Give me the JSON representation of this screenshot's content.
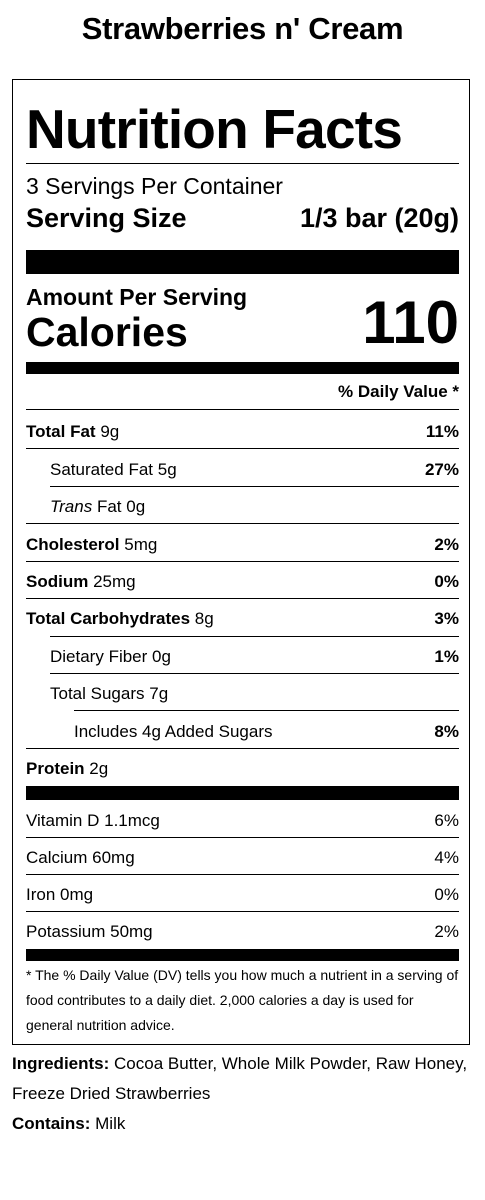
{
  "product_title": "Strawberries n' Cream",
  "label": {
    "title": "Nutrition Facts",
    "servings_per_container": "3 Servings Per Container",
    "serving_size_label": "Serving Size",
    "serving_size_value": "1/3 bar (20g)",
    "amount_per_serving": "Amount Per Serving",
    "calories_label": "Calories",
    "calories_value": "110",
    "dv_header": "% Daily Value *",
    "nutrients": [
      {
        "name": "Total Fat",
        "amount": "9g",
        "dv": "11%"
      },
      {
        "name": "Saturated Fat",
        "amount": "5g",
        "dv": "27%"
      },
      {
        "name_italic": "Trans",
        "name": "Fat",
        "amount": "0g",
        "dv": ""
      },
      {
        "name": "Cholesterol",
        "amount": "5mg",
        "dv": "2%"
      },
      {
        "name": "Sodium",
        "amount": "25mg",
        "dv": "0%"
      },
      {
        "name": "Total Carbohydrates",
        "amount": "8g",
        "dv": "3%"
      },
      {
        "name": "Dietary Fiber",
        "amount": "0g",
        "dv": "1%"
      },
      {
        "name": "Total Sugars",
        "amount": "7g",
        "dv": ""
      },
      {
        "name": "Includes 4g Added Sugars",
        "amount": "",
        "dv": "8%"
      },
      {
        "name": "Protein",
        "amount": "2g",
        "dv": ""
      }
    ],
    "vitamins": [
      {
        "name": "Vitamin D",
        "amount": "1.1mcg",
        "dv": "6%"
      },
      {
        "name": "Calcium",
        "amount": "60mg",
        "dv": "4%"
      },
      {
        "name": "Iron",
        "amount": "0mg",
        "dv": "0%"
      },
      {
        "name": "Potassium",
        "amount": "50mg",
        "dv": "2%"
      }
    ],
    "footnote": "* The % Daily Value (DV) tells you how much a nutrient in a serving of food contributes to a daily diet. 2,000 calories a day is used for general nutrition advice."
  },
  "ingredients": {
    "label": "Ingredients:",
    "text": "Cocoa Butter, Whole Milk Powder, Raw Honey, Freeze Dried Strawberries"
  },
  "contains": {
    "label": "Contains:",
    "text": "Milk"
  }
}
